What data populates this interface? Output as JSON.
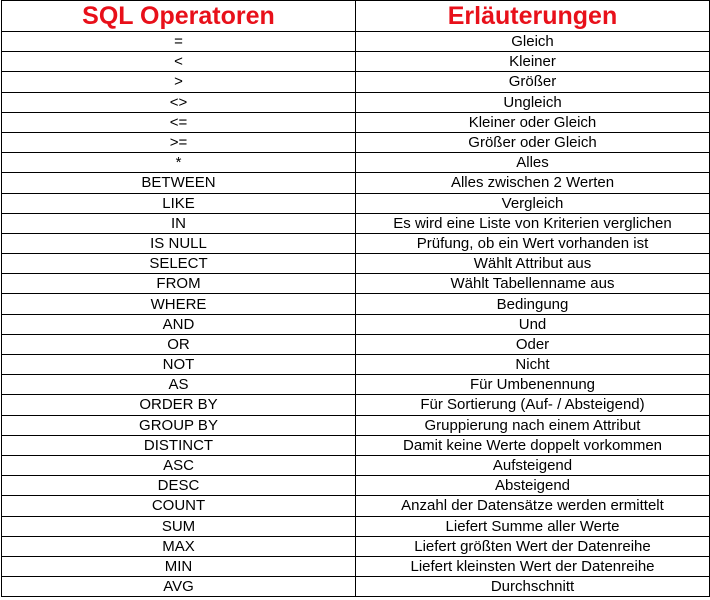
{
  "table": {
    "headers": [
      "SQL Operatoren",
      "Erläuterungen"
    ],
    "header_color": "#e8101a",
    "rows": [
      [
        "=",
        "Gleich"
      ],
      [
        "<",
        "Kleiner"
      ],
      [
        ">",
        "Größer"
      ],
      [
        "<>",
        "Ungleich"
      ],
      [
        "<=",
        "Kleiner oder Gleich"
      ],
      [
        ">=",
        "Größer oder Gleich"
      ],
      [
        "*",
        "Alles"
      ],
      [
        "BETWEEN",
        "Alles zwischen 2 Werten"
      ],
      [
        "LIKE",
        "Vergleich"
      ],
      [
        "IN",
        "Es wird eine Liste von Kriterien verglichen"
      ],
      [
        "IS NULL",
        "Prüfung, ob ein Wert vorhanden ist"
      ],
      [
        "SELECT",
        "Wählt Attribut aus"
      ],
      [
        "FROM",
        "Wählt Tabellenname aus"
      ],
      [
        "WHERE",
        "Bedingung"
      ],
      [
        "AND",
        "Und"
      ],
      [
        "OR",
        "Oder"
      ],
      [
        "NOT",
        "Nicht"
      ],
      [
        "AS",
        "Für Umbenennung"
      ],
      [
        "ORDER BY",
        "Für Sortierung (Auf- / Absteigend)"
      ],
      [
        "GROUP BY",
        "Gruppierung nach einem Attribut"
      ],
      [
        "DISTINCT",
        "Damit keine Werte doppelt vorkommen"
      ],
      [
        "ASC",
        "Aufsteigend"
      ],
      [
        "DESC",
        "Absteigend"
      ],
      [
        "COUNT",
        "Anzahl der Datensätze werden ermittelt"
      ],
      [
        "SUM",
        "Liefert Summe aller Werte"
      ],
      [
        "MAX",
        "Liefert größten Wert der Datenreihe"
      ],
      [
        "MIN",
        "Liefert kleinsten Wert der Datenreihe"
      ],
      [
        "AVG",
        "Durchschnitt"
      ]
    ]
  }
}
